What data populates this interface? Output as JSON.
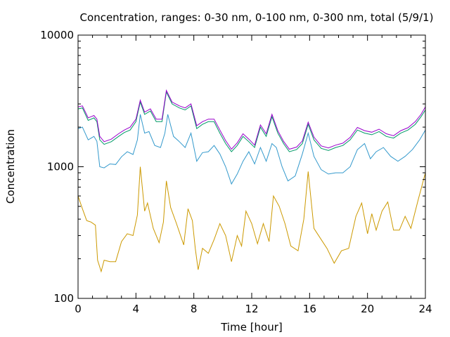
{
  "chart_data": {
    "type": "line",
    "title": "Concentration, ranges: 0-30 nm, 0-100 nm, 0-300 nm, total (5/9/1)",
    "xlabel": "Time [hour]",
    "ylabel": "Concentration",
    "x_range": [
      0,
      24
    ],
    "y_range": [
      100,
      10000
    ],
    "y_scale": "log",
    "grid": false,
    "legend": "none",
    "x_ticks": [
      {
        "value": 0,
        "label": "0"
      },
      {
        "value": 4,
        "label": "4"
      },
      {
        "value": 8,
        "label": "8"
      },
      {
        "value": 12,
        "label": "12"
      },
      {
        "value": 16,
        "label": "16"
      },
      {
        "value": 20,
        "label": "20"
      },
      {
        "value": 24,
        "label": "24"
      }
    ],
    "y_ticks": [
      {
        "value": 100,
        "label": "100"
      },
      {
        "value": 1000,
        "label": "1000"
      },
      {
        "value": 10000,
        "label": "10000"
      }
    ],
    "series": [
      {
        "color": "#cc9900",
        "points": [
          [
            0,
            600
          ],
          [
            0.3,
            480
          ],
          [
            0.6,
            390
          ],
          [
            0.9,
            380
          ],
          [
            1.2,
            360
          ],
          [
            1.35,
            195
          ],
          [
            1.6,
            160
          ],
          [
            1.8,
            195
          ],
          [
            2.2,
            190
          ],
          [
            2.6,
            190
          ],
          [
            3.0,
            270
          ],
          [
            3.4,
            310
          ],
          [
            3.8,
            300
          ],
          [
            4.1,
            430
          ],
          [
            4.3,
            1000
          ],
          [
            4.6,
            460
          ],
          [
            4.8,
            530
          ],
          [
            5.2,
            340
          ],
          [
            5.6,
            265
          ],
          [
            5.9,
            380
          ],
          [
            6.1,
            780
          ],
          [
            6.4,
            490
          ],
          [
            6.8,
            370
          ],
          [
            7.3,
            255
          ],
          [
            7.6,
            480
          ],
          [
            7.9,
            390
          ],
          [
            8.1,
            240
          ],
          [
            8.3,
            165
          ],
          [
            8.6,
            240
          ],
          [
            9.0,
            220
          ],
          [
            9.4,
            280
          ],
          [
            9.8,
            370
          ],
          [
            10.2,
            300
          ],
          [
            10.6,
            190
          ],
          [
            11.0,
            300
          ],
          [
            11.3,
            250
          ],
          [
            11.6,
            460
          ],
          [
            12.0,
            370
          ],
          [
            12.4,
            260
          ],
          [
            12.8,
            370
          ],
          [
            13.2,
            270
          ],
          [
            13.5,
            600
          ],
          [
            13.9,
            500
          ],
          [
            14.3,
            370
          ],
          [
            14.7,
            250
          ],
          [
            15.2,
            230
          ],
          [
            15.6,
            400
          ],
          [
            15.9,
            920
          ],
          [
            16.3,
            340
          ],
          [
            16.8,
            280
          ],
          [
            17.2,
            240
          ],
          [
            17.7,
            185
          ],
          [
            18.2,
            230
          ],
          [
            18.7,
            240
          ],
          [
            19.2,
            420
          ],
          [
            19.6,
            530
          ],
          [
            20.0,
            310
          ],
          [
            20.3,
            440
          ],
          [
            20.6,
            330
          ],
          [
            21.0,
            460
          ],
          [
            21.4,
            540
          ],
          [
            21.8,
            330
          ],
          [
            22.2,
            330
          ],
          [
            22.6,
            420
          ],
          [
            23.0,
            340
          ],
          [
            23.5,
            560
          ],
          [
            24,
            900
          ]
        ]
      },
      {
        "color": "#3399cc",
        "points": [
          [
            0,
            1950
          ],
          [
            0.3,
            2000
          ],
          [
            0.7,
            1600
          ],
          [
            1.1,
            1700
          ],
          [
            1.3,
            1560
          ],
          [
            1.5,
            1000
          ],
          [
            1.8,
            980
          ],
          [
            2.2,
            1050
          ],
          [
            2.6,
            1040
          ],
          [
            3.0,
            1190
          ],
          [
            3.4,
            1300
          ],
          [
            3.8,
            1240
          ],
          [
            4.1,
            1600
          ],
          [
            4.3,
            2500
          ],
          [
            4.6,
            1800
          ],
          [
            4.9,
            1850
          ],
          [
            5.3,
            1450
          ],
          [
            5.7,
            1400
          ],
          [
            6.0,
            1800
          ],
          [
            6.2,
            2500
          ],
          [
            6.6,
            1700
          ],
          [
            7.0,
            1550
          ],
          [
            7.4,
            1400
          ],
          [
            7.8,
            1800
          ],
          [
            8.2,
            1100
          ],
          [
            8.6,
            1280
          ],
          [
            9.0,
            1300
          ],
          [
            9.4,
            1450
          ],
          [
            9.8,
            1250
          ],
          [
            10.2,
            1000
          ],
          [
            10.6,
            740
          ],
          [
            11.0,
            880
          ],
          [
            11.4,
            1100
          ],
          [
            11.8,
            1300
          ],
          [
            12.2,
            1050
          ],
          [
            12.6,
            1400
          ],
          [
            13.0,
            1100
          ],
          [
            13.4,
            1500
          ],
          [
            13.7,
            1400
          ],
          [
            14.1,
            1000
          ],
          [
            14.5,
            780
          ],
          [
            15.0,
            850
          ],
          [
            15.5,
            1250
          ],
          [
            15.9,
            1800
          ],
          [
            16.3,
            1200
          ],
          [
            16.8,
            950
          ],
          [
            17.3,
            880
          ],
          [
            17.8,
            900
          ],
          [
            18.3,
            900
          ],
          [
            18.8,
            1000
          ],
          [
            19.3,
            1350
          ],
          [
            19.8,
            1500
          ],
          [
            20.2,
            1150
          ],
          [
            20.6,
            1300
          ],
          [
            21.1,
            1400
          ],
          [
            21.6,
            1200
          ],
          [
            22.1,
            1100
          ],
          [
            22.6,
            1200
          ],
          [
            23.1,
            1350
          ],
          [
            23.6,
            1600
          ],
          [
            24,
            1900
          ]
        ]
      },
      {
        "color": "#009966",
        "points": [
          [
            0,
            2750
          ],
          [
            0.3,
            2800
          ],
          [
            0.7,
            2250
          ],
          [
            1.1,
            2350
          ],
          [
            1.3,
            2200
          ],
          [
            1.5,
            1600
          ],
          [
            1.8,
            1480
          ],
          [
            2.3,
            1550
          ],
          [
            2.8,
            1700
          ],
          [
            3.2,
            1820
          ],
          [
            3.6,
            1900
          ],
          [
            4.0,
            2200
          ],
          [
            4.3,
            3100
          ],
          [
            4.6,
            2500
          ],
          [
            5.0,
            2650
          ],
          [
            5.4,
            2200
          ],
          [
            5.8,
            2200
          ],
          [
            6.1,
            3700
          ],
          [
            6.5,
            3000
          ],
          [
            7.0,
            2800
          ],
          [
            7.4,
            2700
          ],
          [
            7.8,
            2900
          ],
          [
            8.2,
            1950
          ],
          [
            8.6,
            2100
          ],
          [
            9.0,
            2200
          ],
          [
            9.4,
            2200
          ],
          [
            9.8,
            1800
          ],
          [
            10.2,
            1500
          ],
          [
            10.6,
            1300
          ],
          [
            11.0,
            1450
          ],
          [
            11.4,
            1700
          ],
          [
            11.8,
            1550
          ],
          [
            12.2,
            1400
          ],
          [
            12.6,
            2000
          ],
          [
            13.0,
            1700
          ],
          [
            13.4,
            2400
          ],
          [
            13.8,
            1800
          ],
          [
            14.2,
            1500
          ],
          [
            14.6,
            1300
          ],
          [
            15.1,
            1350
          ],
          [
            15.5,
            1500
          ],
          [
            15.9,
            2100
          ],
          [
            16.3,
            1600
          ],
          [
            16.8,
            1380
          ],
          [
            17.3,
            1330
          ],
          [
            17.8,
            1400
          ],
          [
            18.3,
            1450
          ],
          [
            18.8,
            1600
          ],
          [
            19.3,
            1900
          ],
          [
            19.8,
            1800
          ],
          [
            20.3,
            1750
          ],
          [
            20.8,
            1850
          ],
          [
            21.3,
            1700
          ],
          [
            21.8,
            1650
          ],
          [
            22.3,
            1800
          ],
          [
            22.8,
            1900
          ],
          [
            23.3,
            2100
          ],
          [
            23.7,
            2400
          ],
          [
            24,
            2700
          ]
        ]
      },
      {
        "color": "#9900cc",
        "points": [
          [
            0,
            2850
          ],
          [
            0.3,
            2900
          ],
          [
            0.7,
            2350
          ],
          [
            1.1,
            2450
          ],
          [
            1.3,
            2300
          ],
          [
            1.5,
            1700
          ],
          [
            1.8,
            1550
          ],
          [
            2.3,
            1620
          ],
          [
            2.8,
            1780
          ],
          [
            3.2,
            1900
          ],
          [
            3.6,
            2000
          ],
          [
            4.0,
            2300
          ],
          [
            4.3,
            3200
          ],
          [
            4.6,
            2600
          ],
          [
            5.0,
            2750
          ],
          [
            5.4,
            2300
          ],
          [
            5.8,
            2300
          ],
          [
            6.1,
            3800
          ],
          [
            6.5,
            3100
          ],
          [
            7.0,
            2900
          ],
          [
            7.4,
            2800
          ],
          [
            7.8,
            3000
          ],
          [
            8.2,
            2050
          ],
          [
            8.6,
            2200
          ],
          [
            9.0,
            2300
          ],
          [
            9.4,
            2300
          ],
          [
            9.8,
            1900
          ],
          [
            10.2,
            1580
          ],
          [
            10.6,
            1360
          ],
          [
            11.0,
            1520
          ],
          [
            11.4,
            1780
          ],
          [
            11.8,
            1620
          ],
          [
            12.2,
            1460
          ],
          [
            12.6,
            2080
          ],
          [
            13.0,
            1780
          ],
          [
            13.4,
            2500
          ],
          [
            13.8,
            1880
          ],
          [
            14.2,
            1560
          ],
          [
            14.6,
            1360
          ],
          [
            15.1,
            1410
          ],
          [
            15.5,
            1570
          ],
          [
            15.9,
            2180
          ],
          [
            16.3,
            1680
          ],
          [
            16.8,
            1440
          ],
          [
            17.3,
            1390
          ],
          [
            17.8,
            1460
          ],
          [
            18.3,
            1510
          ],
          [
            18.8,
            1670
          ],
          [
            19.3,
            1990
          ],
          [
            19.8,
            1880
          ],
          [
            20.3,
            1830
          ],
          [
            20.8,
            1930
          ],
          [
            21.3,
            1780
          ],
          [
            21.8,
            1720
          ],
          [
            22.3,
            1880
          ],
          [
            22.8,
            1980
          ],
          [
            23.3,
            2200
          ],
          [
            23.7,
            2500
          ],
          [
            24,
            2850
          ]
        ]
      }
    ]
  }
}
